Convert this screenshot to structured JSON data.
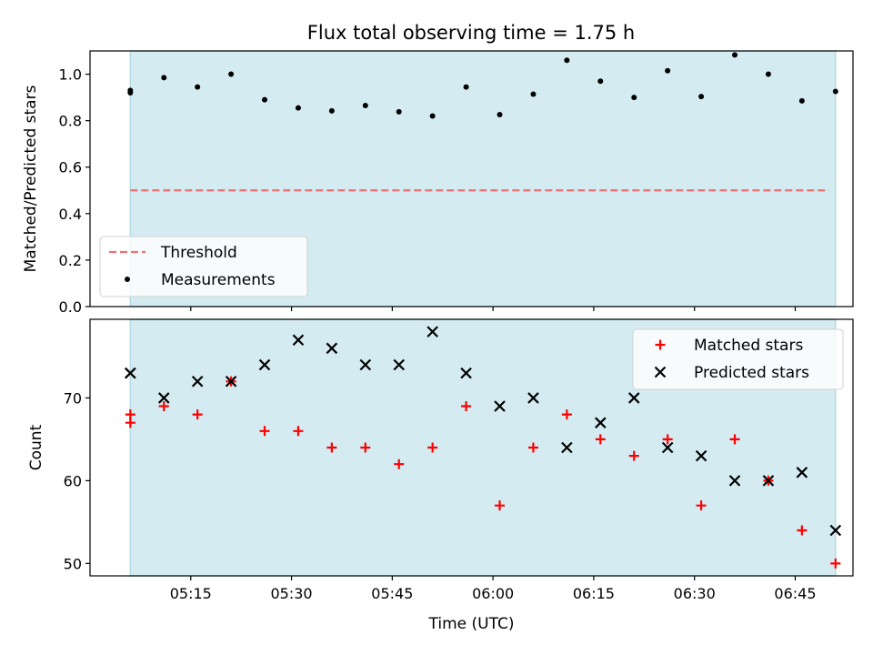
{
  "title": "Flux total observing time = 1.75 h",
  "colors": {
    "band": "#d4ebf1",
    "band_edge": "#b5dbe4",
    "threshold": "#ef7070",
    "matched": "#ff0000",
    "predicted": "#000000",
    "measurement": "#000000"
  },
  "chart_data": [
    {
      "type": "scatter",
      "ylabel": "Matched/Predicted stars",
      "ylim": [
        0,
        1.1
      ],
      "yticks": [
        "0.0",
        "0.2",
        "0.4",
        "0.6",
        "0.8",
        "1.0"
      ],
      "shaded_span": [
        "05:06",
        "06:51"
      ],
      "threshold": {
        "label": "Threshold",
        "value": 0.5,
        "x_range": [
          "05:06",
          "06:50"
        ]
      },
      "legend": {
        "position": "lower-left",
        "entries": [
          "Threshold",
          "Measurements"
        ]
      },
      "series": [
        {
          "name": "Measurements",
          "x": [
            "05:06",
            "05:06",
            "05:11",
            "05:16",
            "05:21",
            "05:26",
            "05:31",
            "05:36",
            "05:41",
            "05:46",
            "05:51",
            "05:56",
            "06:01",
            "06:06",
            "06:11",
            "06:16",
            "06:21",
            "06:26",
            "06:31",
            "06:36",
            "06:41",
            "06:46",
            "06:51"
          ],
          "values": [
            0.93,
            0.92,
            0.985,
            0.945,
            1.0,
            0.89,
            0.855,
            0.842,
            0.865,
            0.838,
            0.82,
            0.945,
            0.826,
            0.914,
            1.06,
            0.97,
            0.9,
            1.015,
            0.904,
            1.083,
            1.0,
            0.885,
            0.926
          ]
        }
      ]
    },
    {
      "type": "scatter",
      "xlabel": "Time (UTC)",
      "ylabel": "Count",
      "ylim": [
        48.5,
        79.5
      ],
      "yticks": [
        "50",
        "60",
        "70"
      ],
      "xticks": [
        "05:15",
        "05:30",
        "05:45",
        "06:00",
        "06:15",
        "06:30",
        "06:45"
      ],
      "shaded_span": [
        "05:06",
        "06:51"
      ],
      "legend": {
        "position": "top-right",
        "entries": [
          "Matched stars",
          "Predicted stars"
        ]
      },
      "series": [
        {
          "name": "Matched stars",
          "x": [
            "05:06",
            "05:06",
            "05:11",
            "05:16",
            "05:21",
            "05:26",
            "05:31",
            "05:36",
            "05:41",
            "05:46",
            "05:51",
            "05:56",
            "06:01",
            "06:06",
            "06:11",
            "06:16",
            "06:21",
            "06:26",
            "06:31",
            "06:36",
            "06:41",
            "06:46",
            "06:51"
          ],
          "values": [
            68,
            67,
            69,
            68,
            72,
            66,
            66,
            64,
            64,
            62,
            64,
            69,
            57,
            64,
            68,
            65,
            63,
            65,
            57,
            65,
            60,
            54,
            50
          ]
        },
        {
          "name": "Predicted stars",
          "x": [
            "05:06",
            "05:06",
            "05:11",
            "05:16",
            "05:21",
            "05:26",
            "05:31",
            "05:36",
            "05:41",
            "05:46",
            "05:51",
            "05:56",
            "06:01",
            "06:06",
            "06:11",
            "06:16",
            "06:21",
            "06:26",
            "06:31",
            "06:36",
            "06:41",
            "06:46",
            "06:51"
          ],
          "values": [
            73,
            73,
            70,
            72,
            72,
            74,
            77,
            76,
            74,
            74,
            78,
            73,
            69,
            70,
            64,
            67,
            70,
            64,
            63,
            60,
            60,
            61,
            54
          ]
        }
      ]
    }
  ]
}
